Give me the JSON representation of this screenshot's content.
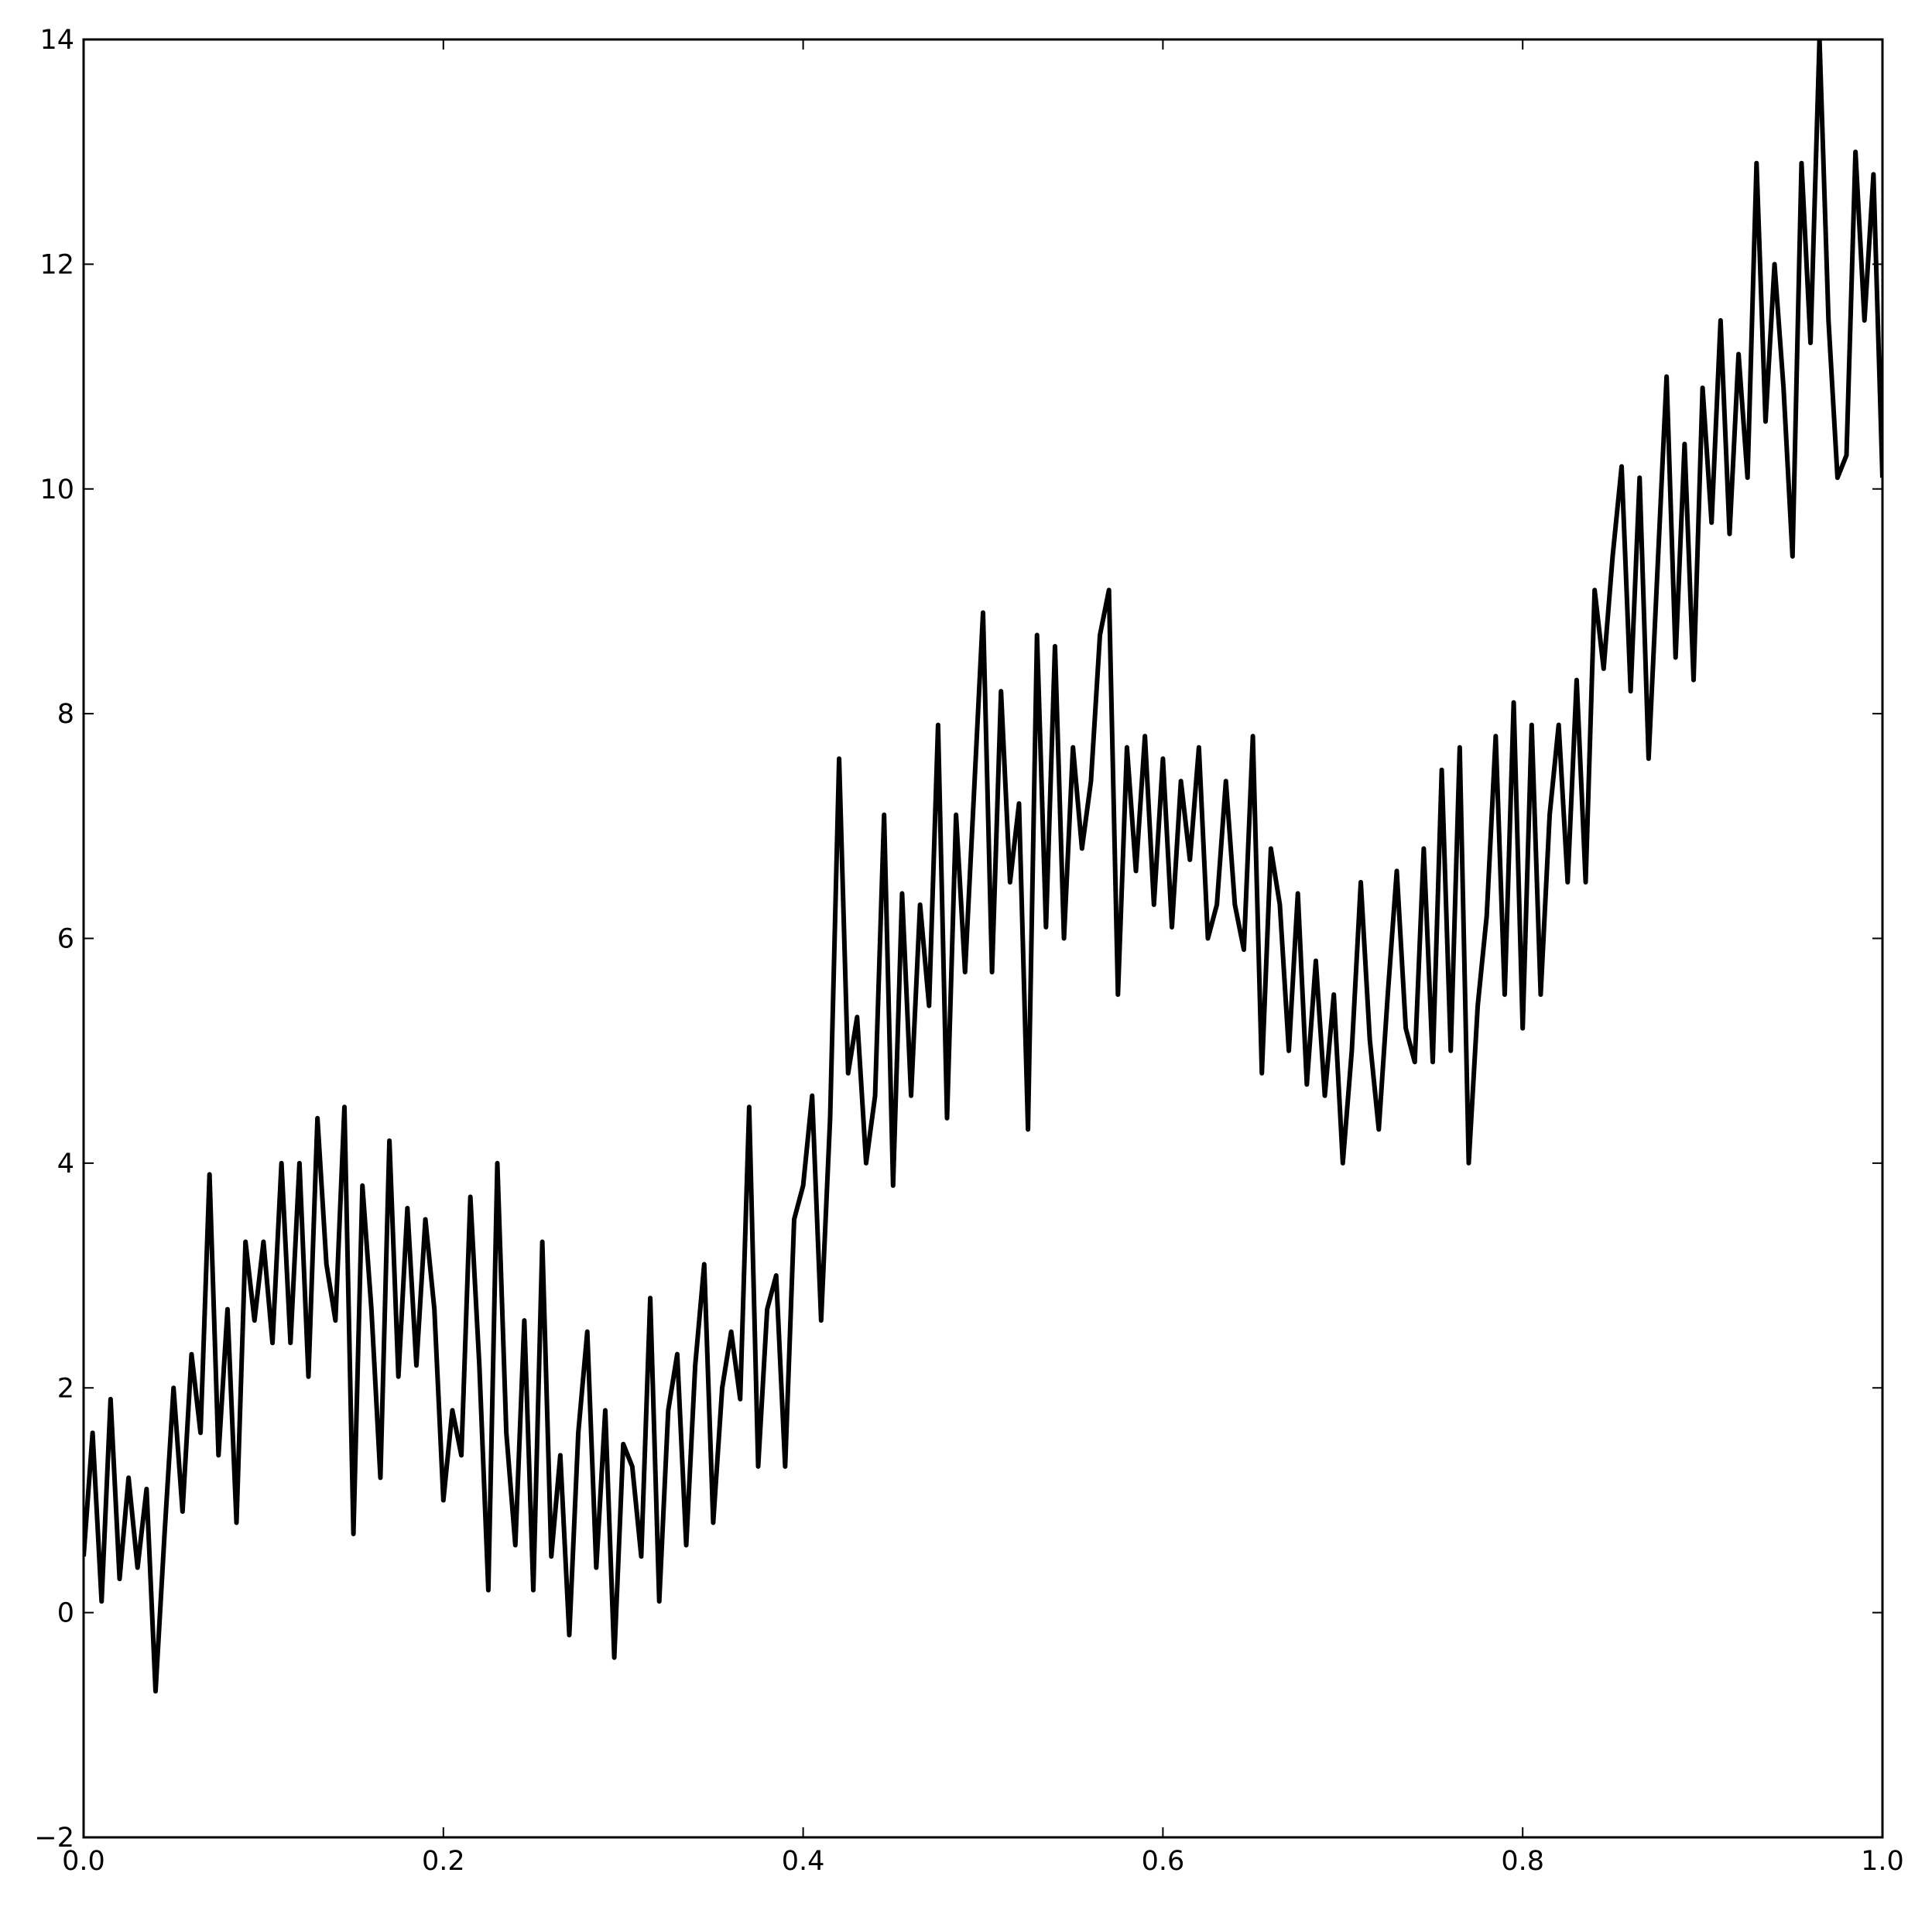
{
  "chart_data": {
    "type": "line",
    "x": [
      0,
      0.005,
      0.01,
      0.015,
      0.02,
      0.025,
      0.03,
      0.035,
      0.04,
      0.045,
      0.05,
      0.055,
      0.06,
      0.065,
      0.07,
      0.075,
      0.08,
      0.085,
      0.09,
      0.095,
      0.1,
      0.105,
      0.11,
      0.115,
      0.12,
      0.125,
      0.13,
      0.135,
      0.14,
      0.145,
      0.15,
      0.155,
      0.16,
      0.165,
      0.17,
      0.175,
      0.18,
      0.185,
      0.19,
      0.195,
      0.2,
      0.205,
      0.21,
      0.215,
      0.22,
      0.225,
      0.23,
      0.235,
      0.24,
      0.245,
      0.25,
      0.255,
      0.26,
      0.265,
      0.27,
      0.275,
      0.28,
      0.285,
      0.29,
      0.295,
      0.3,
      0.305,
      0.31,
      0.315,
      0.32,
      0.325,
      0.33,
      0.335,
      0.34,
      0.345,
      0.35,
      0.355,
      0.36,
      0.365,
      0.37,
      0.375,
      0.38,
      0.385,
      0.39,
      0.395,
      0.4,
      0.405,
      0.41,
      0.415,
      0.42,
      0.425,
      0.43,
      0.435,
      0.44,
      0.445,
      0.45,
      0.455,
      0.46,
      0.465,
      0.47,
      0.475,
      0.48,
      0.485,
      0.49,
      0.495,
      0.5,
      0.505,
      0.51,
      0.515,
      0.52,
      0.525,
      0.53,
      0.535,
      0.54,
      0.545,
      0.55,
      0.555,
      0.56,
      0.565,
      0.57,
      0.575,
      0.58,
      0.585,
      0.59,
      0.595,
      0.6,
      0.605,
      0.61,
      0.615,
      0.62,
      0.625,
      0.63,
      0.635,
      0.64,
      0.645,
      0.65,
      0.655,
      0.66,
      0.665,
      0.67,
      0.675,
      0.68,
      0.685,
      0.69,
      0.695,
      0.7,
      0.705,
      0.71,
      0.715,
      0.72,
      0.725,
      0.73,
      0.735,
      0.74,
      0.745,
      0.75,
      0.755,
      0.76,
      0.765,
      0.77,
      0.775,
      0.78,
      0.785,
      0.79,
      0.795,
      0.8,
      0.805,
      0.81,
      0.815,
      0.82,
      0.825,
      0.83,
      0.835,
      0.84,
      0.845,
      0.85,
      0.855,
      0.86,
      0.865,
      0.87,
      0.875,
      0.88,
      0.885,
      0.89,
      0.895,
      0.9,
      0.905,
      0.91,
      0.915,
      0.92,
      0.925,
      0.93,
      0.935,
      0.94,
      0.945,
      0.95,
      0.955,
      0.96,
      0.965,
      0.97,
      0.975,
      0.98,
      0.985,
      0.99,
      0.995,
      1
    ],
    "series": [
      {
        "color": "#000000",
        "values": [
          0.5,
          1.6,
          0.1,
          1.9,
          0.3,
          1.2,
          0.4,
          1.1,
          -0.7,
          0.7,
          2.0,
          0.9,
          2.3,
          1.6,
          3.9,
          1.4,
          2.7,
          0.8,
          3.3,
          2.6,
          3.3,
          2.4,
          4.0,
          2.4,
          4.0,
          2.1,
          4.4,
          3.1,
          2.6,
          4.5,
          0.7,
          3.8,
          2.7,
          1.2,
          4.2,
          2.1,
          3.6,
          2.2,
          3.5,
          2.7,
          1.0,
          1.8,
          1.4,
          3.7,
          2.2,
          0.2,
          4.0,
          1.6,
          0.6,
          2.6,
          0.2,
          3.3,
          0.5,
          1.4,
          -0.2,
          1.6,
          2.5,
          0.4,
          1.8,
          -0.4,
          1.5,
          1.3,
          0.5,
          2.8,
          0.1,
          1.8,
          2.3,
          0.6,
          2.2,
          3.1,
          0.8,
          2.0,
          2.5,
          1.9,
          4.5,
          1.3,
          2.7,
          3.0,
          1.3,
          3.5,
          3.8,
          4.6,
          2.6,
          4.4,
          7.6,
          4.8,
          5.3,
          4.0,
          4.6,
          7.1,
          3.8,
          6.4,
          4.6,
          6.3,
          5.4,
          7.9,
          4.4,
          7.1,
          5.7,
          7.3,
          8.9,
          5.7,
          8.2,
          6.5,
          7.2,
          4.3,
          8.7,
          6.1,
          8.6,
          6.0,
          7.7,
          6.8,
          7.4,
          8.7,
          9.1,
          5.5,
          7.7,
          6.6,
          7.8,
          6.3,
          7.6,
          6.1,
          7.4,
          6.7,
          7.7,
          6.0,
          6.3,
          7.4,
          6.3,
          5.9,
          7.8,
          4.8,
          6.8,
          6.3,
          5.0,
          6.4,
          4.7,
          5.8,
          4.6,
          5.5,
          4.0,
          5.0,
          6.5,
          5.1,
          4.3,
          5.5,
          6.6,
          5.2,
          4.9,
          6.8,
          4.9,
          7.5,
          5.0,
          7.7,
          4.0,
          5.4,
          6.2,
          7.8,
          5.5,
          8.1,
          5.2,
          7.9,
          5.5,
          7.1,
          7.9,
          6.5,
          8.3,
          6.5,
          9.1,
          8.4,
          9.4,
          10.2,
          8.2,
          10.1,
          7.6,
          9.3,
          11.0,
          8.5,
          10.4,
          8.3,
          10.9,
          9.7,
          11.5,
          9.6,
          11.2,
          10.1,
          12.9,
          10.6,
          12.0,
          10.9,
          9.4,
          12.9,
          11.3,
          14.0,
          11.5,
          10.1,
          10.3,
          13.0,
          11.5,
          12.8,
          10.1
        ]
      }
    ],
    "xlim": [
      0,
      1
    ],
    "xticks": [
      {
        "value": 0,
        "label": "0.0"
      },
      0.2,
      0.4,
      0.6,
      0.8,
      {
        "value": 1,
        "label": "1.0"
      }
    ],
    "ylim": [
      -2,
      14
    ],
    "yticks": [
      {
        "value": -2,
        "label": "−2"
      },
      0,
      2,
      4,
      6,
      8,
      10,
      12,
      14
    ]
  }
}
